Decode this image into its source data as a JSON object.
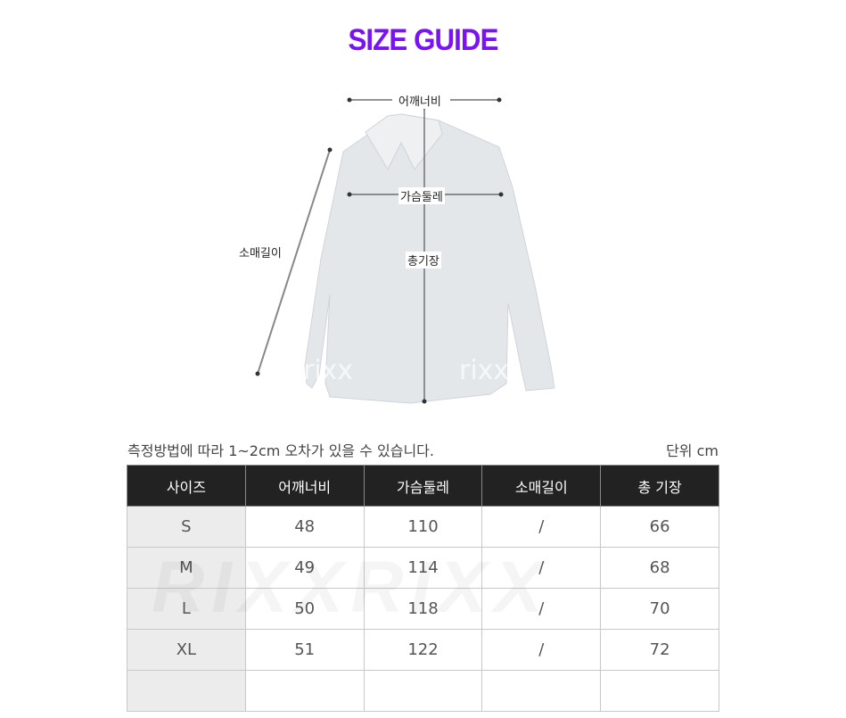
{
  "title": "SIZE GUIDE",
  "diagram": {
    "shoulder": "어깨너비",
    "chest": "가슴둘레",
    "sleeve": "소매길이",
    "length": "총기장",
    "watermark": "rixx"
  },
  "note": "측정방법에 따라 1~2cm 오차가 있을 수 있습니다.",
  "unit": "단위 cm",
  "table": {
    "headers": [
      "사이즈",
      "어깨너비",
      "가슴둘레",
      "소매길이",
      "총 기장"
    ],
    "rows": [
      [
        "S",
        "48",
        "110",
        "/",
        "66"
      ],
      [
        "M",
        "49",
        "114",
        "/",
        "68"
      ],
      [
        "L",
        "50",
        "118",
        "/",
        "70"
      ],
      [
        "XL",
        "51",
        "122",
        "/",
        "72"
      ],
      [
        "",
        "",
        "",
        "",
        ""
      ]
    ]
  },
  "watermark": "RIXXRIXX"
}
